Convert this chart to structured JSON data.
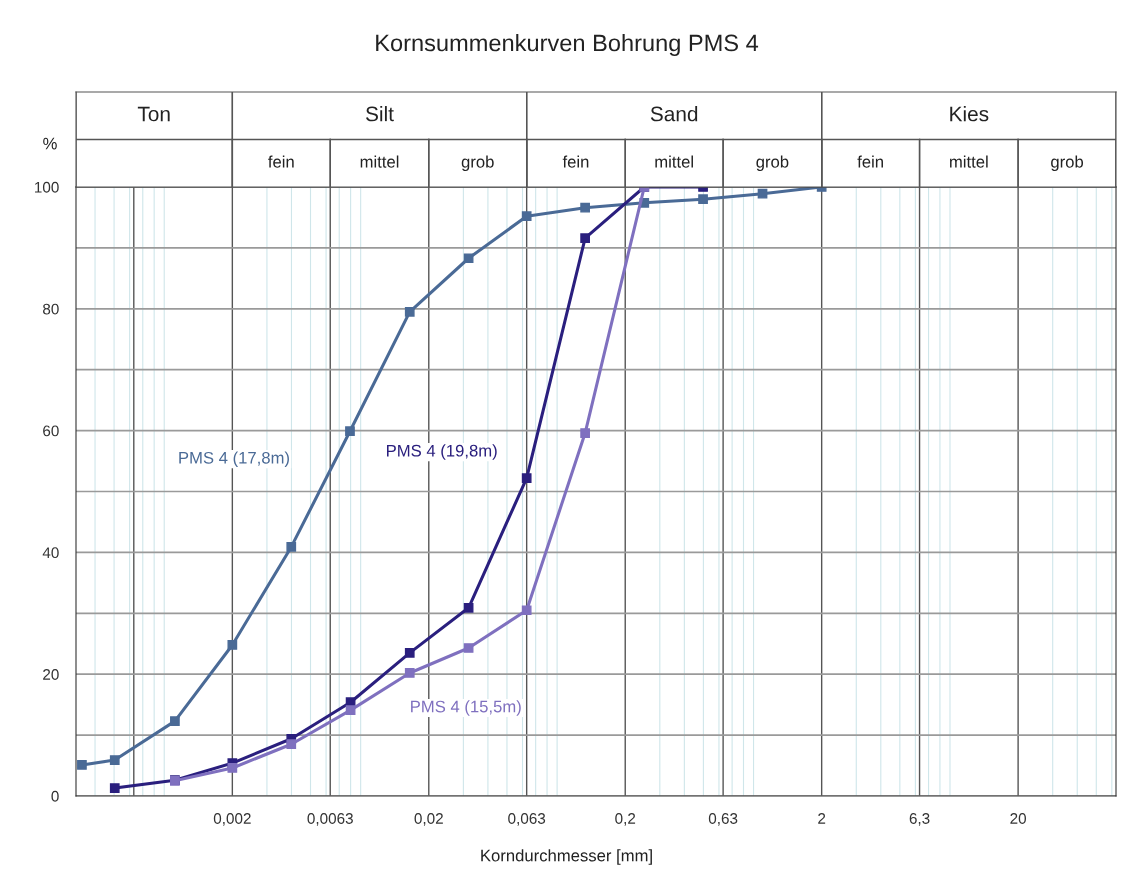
{
  "chart_data": {
    "type": "line",
    "title": "Kornsummenkurven Bohrung PMS 4",
    "xlabel": "Korndurchmesser [mm]",
    "ylabel": "%",
    "log": "x",
    "xlim": [
      0.00032,
      63
    ],
    "ylim": [
      0,
      100
    ],
    "xticks": [
      {
        "value": 0.00063,
        "label": null
      },
      {
        "value": 0.002,
        "label": "0,002"
      },
      {
        "value": 0.0063,
        "label": "0,0063"
      },
      {
        "value": 0.02,
        "label": "0,02"
      },
      {
        "value": 0.063,
        "label": "0,063"
      },
      {
        "value": 0.2,
        "label": "0,2"
      },
      {
        "value": 0.63,
        "label": "0,63"
      },
      {
        "value": 2,
        "label": "2"
      },
      {
        "value": 6.3,
        "label": "6,3"
      },
      {
        "value": 20,
        "label": "20"
      }
    ],
    "yticks": [
      0,
      {
        "value": 10,
        "label": null
      },
      20,
      {
        "value": 30,
        "label": null
      },
      40,
      {
        "value": 50,
        "label": null
      },
      60,
      {
        "value": 70,
        "label": null
      },
      80,
      {
        "value": 90,
        "label": null
      },
      100
    ],
    "grid": true,
    "marker": "square",
    "line_style": "solid",
    "series": [
      {
        "name": "PMS 4 (17,8m)",
        "color": "#4a6a96",
        "x": [
          0.000343,
          0.000504,
          0.00102,
          0.002,
          0.00399,
          0.00794,
          0.016,
          0.0319,
          0.063,
          0.125,
          0.25,
          0.498,
          1.0,
          2
        ],
        "values": [
          5.1,
          5.9,
          12.3,
          24.8,
          40.9,
          59.9,
          79.5,
          88.3,
          95.2,
          96.6,
          97.4,
          98.0,
          98.9,
          100
        ]
      },
      {
        "name": "PMS 4 (19,8m)",
        "color": "#2a1f7e",
        "x": [
          0.000504,
          0.00102,
          0.002,
          0.00399,
          0.008,
          0.016,
          0.0319,
          0.063,
          0.125,
          0.25,
          0.498
        ],
        "values": [
          1.3,
          2.6,
          5.4,
          9.4,
          15.4,
          23.5,
          30.9,
          52.2,
          91.6,
          100,
          100
        ]
      },
      {
        "name": "PMS 4 (15,5m)",
        "color": "#7f70bf",
        "x": [
          0.00102,
          0.002,
          0.00399,
          0.008,
          0.016,
          0.0319,
          0.063,
          0.125,
          0.25
        ],
        "values": [
          2.5,
          4.6,
          8.5,
          14.1,
          20.2,
          24.3,
          30.5,
          59.6,
          100
        ]
      }
    ],
    "annotations": [
      "Ton",
      "Silt",
      "Sand",
      "Kies",
      "fein",
      "mittel",
      "grob",
      "fein",
      "mittel",
      "grob",
      "fein",
      "mittel",
      "grob"
    ]
  }
}
